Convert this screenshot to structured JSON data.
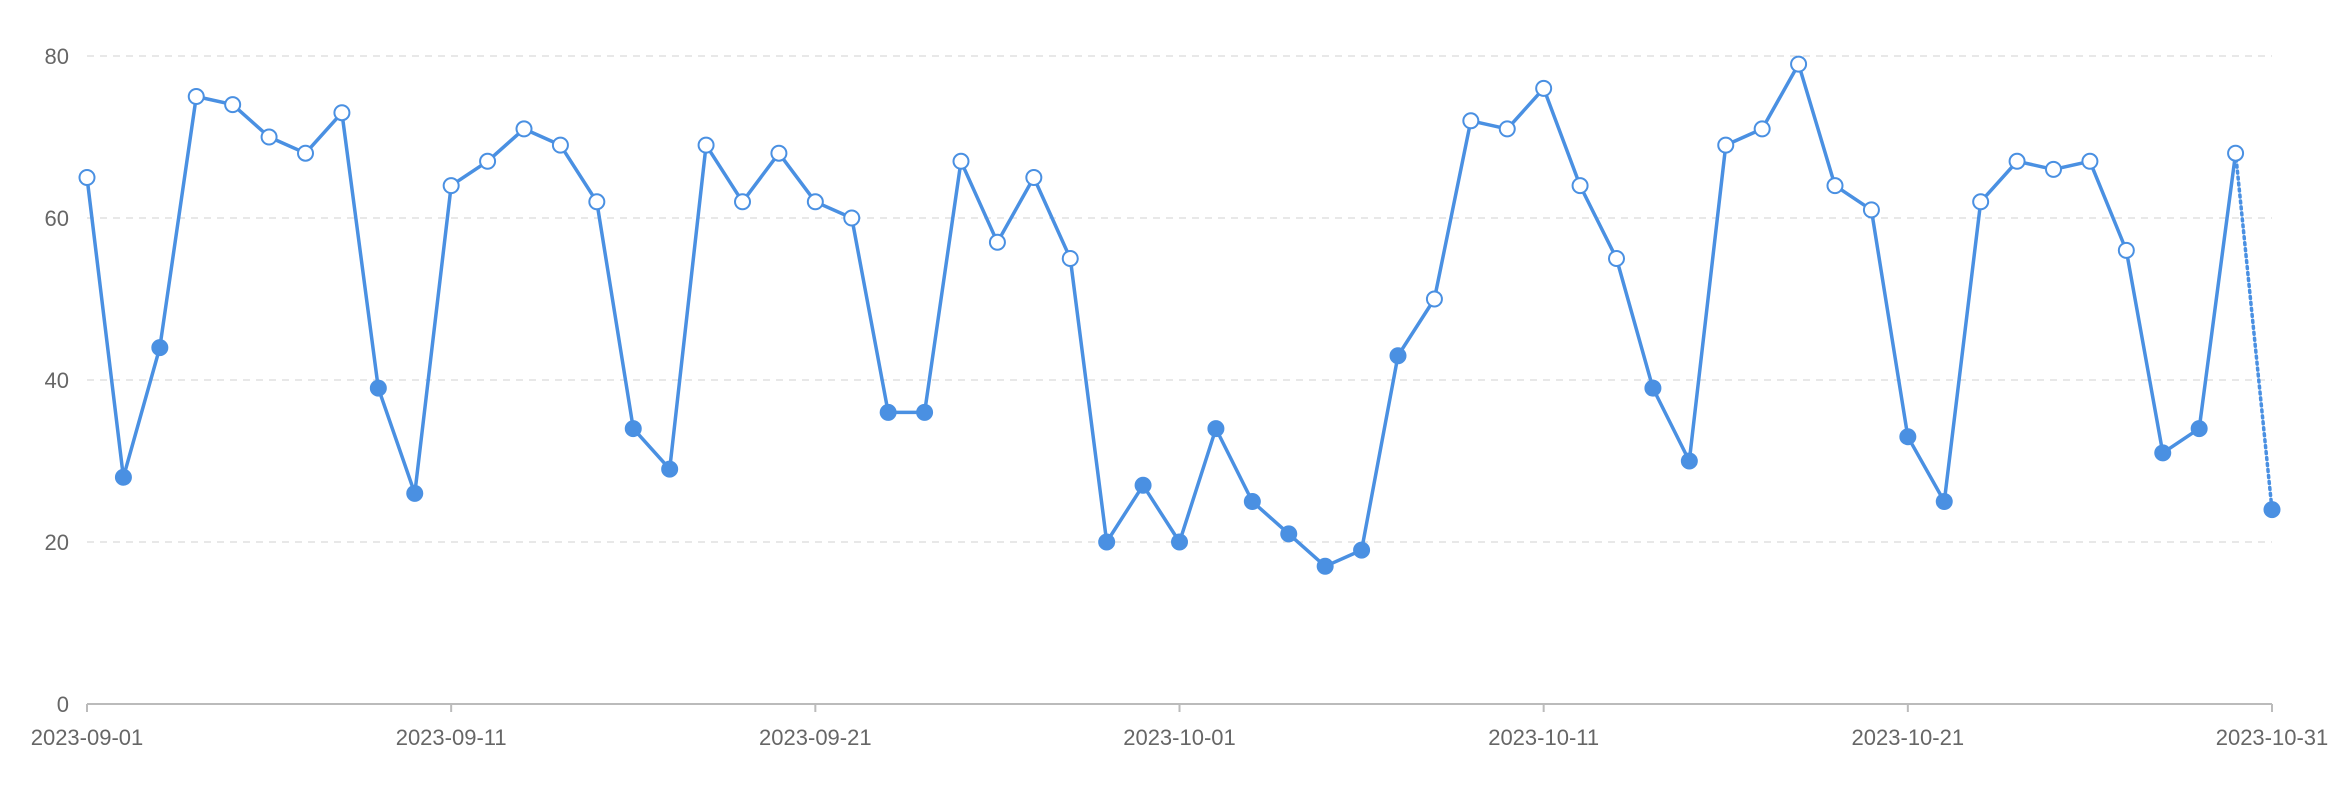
{
  "chart_data": {
    "type": "line",
    "title": "",
    "xlabel": "",
    "ylabel": "",
    "x_tick_labels": [
      "2023-09-01",
      "2023-09-11",
      "2023-09-21",
      "2023-10-01",
      "2023-10-11",
      "2023-10-21",
      "2023-10-31"
    ],
    "y_tick_labels": [
      "0",
      "20",
      "40",
      "60",
      "80"
    ],
    "y_ticks": [
      0,
      20,
      40,
      60,
      80
    ],
    "ylim": [
      0,
      80
    ],
    "xlim": [
      "2023-09-01",
      "2023-10-31"
    ],
    "grid": "horizontal dashed",
    "colors": {
      "line": "#4a90e2",
      "grid": "#e0e0e0",
      "axis": "#bbbbbb",
      "text": "#666666",
      "hollow_fill": "#ffffff"
    },
    "marker_style": "filled when value is below 50, hollow otherwise",
    "last_segment_style": "dotted",
    "series": [
      {
        "x": [
          "2023-09-01",
          "2023-09-02",
          "2023-09-03",
          "2023-09-04",
          "2023-09-05",
          "2023-09-06",
          "2023-09-07",
          "2023-09-08",
          "2023-09-09",
          "2023-09-10",
          "2023-09-11",
          "2023-09-12",
          "2023-09-13",
          "2023-09-14",
          "2023-09-15",
          "2023-09-16",
          "2023-09-17",
          "2023-09-18",
          "2023-09-19",
          "2023-09-20",
          "2023-09-21",
          "2023-09-22",
          "2023-09-23",
          "2023-09-24",
          "2023-09-25",
          "2023-09-26",
          "2023-09-27",
          "2023-09-28",
          "2023-09-29",
          "2023-09-30",
          "2023-10-01",
          "2023-10-02",
          "2023-10-03",
          "2023-10-04",
          "2023-10-05",
          "2023-10-06",
          "2023-10-07",
          "2023-10-08",
          "2023-10-09",
          "2023-10-10",
          "2023-10-11",
          "2023-10-12",
          "2023-10-13",
          "2023-10-14",
          "2023-10-15",
          "2023-10-16",
          "2023-10-17",
          "2023-10-18",
          "2023-10-19",
          "2023-10-20",
          "2023-10-21",
          "2023-10-22",
          "2023-10-23",
          "2023-10-24",
          "2023-10-25",
          "2023-10-26",
          "2023-10-27",
          "2023-10-28",
          "2023-10-29",
          "2023-10-30",
          "2023-10-31"
        ],
        "values": [
          65,
          28,
          44,
          75,
          74,
          70,
          68,
          73,
          39,
          26,
          64,
          67,
          71,
          69,
          62,
          34,
          29,
          69,
          62,
          68,
          62,
          60,
          36,
          36,
          67,
          57,
          65,
          55,
          20,
          27,
          20,
          34,
          25,
          21,
          17,
          19,
          43,
          50,
          72,
          71,
          76,
          64,
          55,
          39,
          30,
          69,
          71,
          79,
          64,
          61,
          33,
          25,
          62,
          67,
          66,
          67,
          56,
          31,
          34,
          68,
          24
        ]
      }
    ]
  }
}
